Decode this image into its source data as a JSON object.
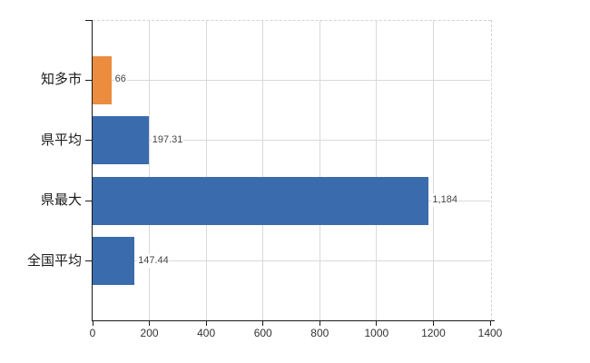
{
  "chart_data": {
    "type": "bar",
    "orientation": "horizontal",
    "title": "",
    "legend": "none",
    "grid": "on",
    "categories": [
      "知多市",
      "県平均",
      "県最大",
      "全国平均"
    ],
    "values": [
      66,
      197.31,
      1184,
      147.44
    ],
    "value_labels": [
      "66",
      "197.31",
      "1,184",
      "147.44"
    ],
    "bar_colors": [
      "#EC8C3E",
      "#3A6BAD",
      "#3A6BAD",
      "#3A6BAD"
    ],
    "xlim": [
      0,
      1400
    ],
    "x_ticks": [
      "0",
      "200",
      "400",
      "600",
      "800",
      "1000",
      "1200",
      "1400"
    ],
    "x_tick_values": [
      0,
      200,
      400,
      600,
      800,
      1000,
      1200,
      1400
    ]
  },
  "colors": {
    "bar_highlight_orange": "#EC8C3E",
    "bar_blue": "#3A6BAD",
    "gridline": "#D9D9D9",
    "plot_border_dashed": "#D2D2D2",
    "axis": "#1A1A1A",
    "value_label_text": "#444444",
    "tick_label_text": "#333333",
    "category_label_text": "#1A1A1A",
    "background": "#FFFFFF"
  }
}
